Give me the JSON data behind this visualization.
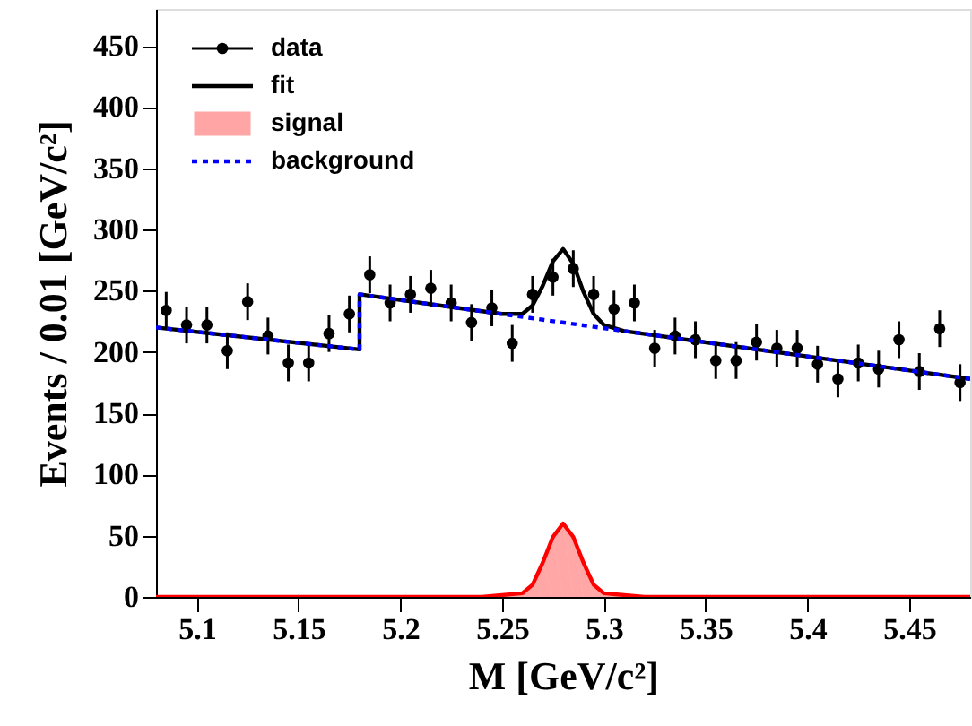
{
  "chart_data": {
    "type": "scatter",
    "xlabel": "M [GeV/c²]",
    "ylabel": "Events / 0.01 [GeV/c²]",
    "xlim": [
      5.08,
      5.48
    ],
    "ylim": [
      0,
      480
    ],
    "xticks": [
      5.1,
      5.15,
      5.2,
      5.25,
      5.3,
      5.35,
      5.4,
      5.45
    ],
    "yticks": [
      0,
      50,
      100,
      150,
      200,
      250,
      300,
      350,
      400,
      450
    ],
    "grid": false,
    "legend": "top left",
    "series": [
      {
        "name": "data",
        "marker": "circle",
        "color": "#000000",
        "x": [
          5.085,
          5.095,
          5.105,
          5.115,
          5.125,
          5.135,
          5.145,
          5.155,
          5.165,
          5.175,
          5.185,
          5.195,
          5.205,
          5.215,
          5.225,
          5.235,
          5.245,
          5.255,
          5.265,
          5.275,
          5.285,
          5.295,
          5.305,
          5.315,
          5.325,
          5.335,
          5.345,
          5.355,
          5.365,
          5.375,
          5.385,
          5.395,
          5.405,
          5.415,
          5.425,
          5.435,
          5.445,
          5.455,
          5.465,
          5.475
        ],
        "values": [
          234,
          222,
          222,
          201,
          241,
          213,
          191,
          191,
          215,
          231,
          263,
          240,
          247,
          252,
          240,
          224,
          236,
          207,
          247,
          261,
          268,
          247,
          235,
          240,
          203,
          213,
          210,
          193,
          193,
          208,
          203,
          203,
          190,
          178,
          191,
          186,
          210,
          184,
          219,
          175
        ],
        "errors": [
          15,
          15,
          15,
          15,
          15,
          15,
          15,
          15,
          15,
          15,
          15,
          15,
          15,
          15,
          15,
          15,
          15,
          15,
          15,
          15,
          15,
          15,
          15,
          15,
          15,
          15,
          15,
          15,
          15,
          15,
          15,
          15,
          15,
          15,
          15,
          15,
          15,
          15,
          15,
          15
        ]
      },
      {
        "name": "fit",
        "type": "line",
        "line_style": "solid",
        "color": "#000000",
        "x": [
          5.08,
          5.18,
          5.18,
          5.25,
          5.26,
          5.265,
          5.27,
          5.275,
          5.28,
          5.285,
          5.29,
          5.295,
          5.3,
          5.31,
          5.48
        ],
        "values": [
          220,
          202,
          247,
          231,
          231,
          238,
          254,
          274,
          284,
          272,
          249,
          231,
          222,
          217,
          178
        ]
      },
      {
        "name": "signal",
        "type": "area",
        "color": "#ff0000",
        "x": [
          5.08,
          5.24,
          5.26,
          5.265,
          5.27,
          5.275,
          5.28,
          5.285,
          5.29,
          5.295,
          5.3,
          5.32,
          5.48
        ],
        "values": [
          0,
          0,
          3,
          10,
          28,
          49,
          60,
          49,
          28,
          10,
          3,
          0,
          0
        ]
      },
      {
        "name": "background",
        "type": "line",
        "line_style": "dotted",
        "color": "#0000ff",
        "x": [
          5.08,
          5.18,
          5.18,
          5.48
        ],
        "values": [
          220,
          202,
          247,
          178
        ]
      }
    ]
  }
}
